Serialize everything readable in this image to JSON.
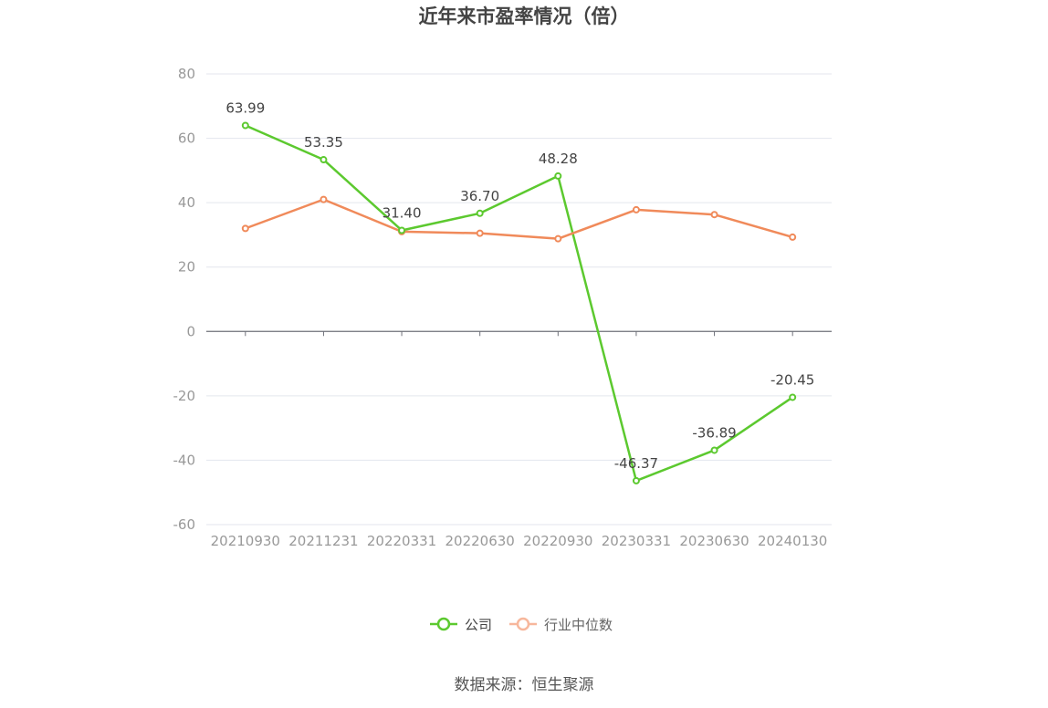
{
  "title": "近年来市盈率情况（倍）",
  "source": "数据来源：恒生聚源",
  "chart_data": {
    "type": "line",
    "title": "近年来市盈率情况（倍）",
    "categories": [
      "20210930",
      "20211231",
      "20220331",
      "20220630",
      "20220930",
      "20230331",
      "20230630",
      "20240130"
    ],
    "ylim": [
      -60,
      80
    ],
    "yticks": [
      80,
      60,
      40,
      20,
      0,
      -20,
      -40,
      -60
    ],
    "grid": true,
    "legend_position": "bottom-center",
    "series": [
      {
        "name": "公司",
        "color": "#5cc92f",
        "values": [
          63.99,
          53.35,
          31.4,
          36.7,
          48.28,
          -46.37,
          -36.89,
          -20.45
        ],
        "labels": [
          "63.99",
          "53.35",
          "31.40",
          "36.70",
          "48.28",
          "-46.37",
          "-36.89",
          "-20.45"
        ]
      },
      {
        "name": "行业中位数",
        "color": "#f08a5a",
        "values": [
          32.0,
          41.0,
          31.0,
          30.5,
          28.8,
          37.8,
          36.3,
          29.3
        ]
      }
    ]
  }
}
